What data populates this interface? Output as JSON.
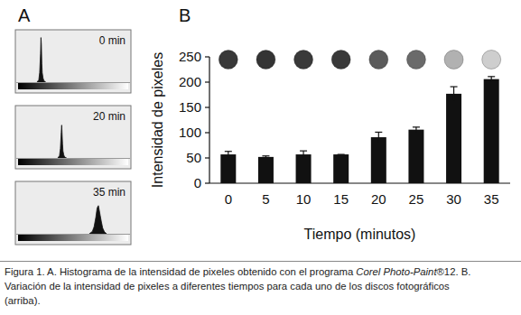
{
  "panel_labels": [
    "A",
    "B"
  ],
  "chart_data": [
    {
      "type": "histogram_area",
      "title": "0 min",
      "color": "#111111",
      "tick_labels": false,
      "grid": false,
      "xlim": [
        0,
        255
      ],
      "ylim": [
        0,
        100
      ],
      "x": [
        44,
        48,
        50,
        52,
        53,
        54,
        55,
        56,
        58,
        60,
        64
      ],
      "values": [
        0,
        5,
        20,
        60,
        95,
        80,
        40,
        20,
        8,
        3,
        0
      ]
    },
    {
      "type": "histogram_area",
      "title": "20 min",
      "color": "#111111",
      "tick_labels": false,
      "grid": false,
      "xlim": [
        0,
        255
      ],
      "ylim": [
        0,
        100
      ],
      "x": [
        92,
        96,
        98,
        100,
        101,
        102,
        103,
        104,
        106,
        108,
        112
      ],
      "values": [
        0,
        5,
        20,
        55,
        70,
        50,
        30,
        15,
        6,
        2,
        0
      ]
    },
    {
      "type": "histogram_area",
      "title": "35 min",
      "color": "#111111",
      "tick_labels": false,
      "grid": false,
      "xlim": [
        0,
        255
      ],
      "ylim": [
        0,
        100
      ],
      "x": [
        165,
        172,
        176,
        180,
        183,
        186,
        188,
        190,
        193,
        196,
        200,
        205
      ],
      "values": [
        0,
        5,
        15,
        35,
        55,
        60,
        50,
        40,
        25,
        12,
        4,
        0
      ]
    },
    {
      "type": "bar",
      "x_label": "Tiempo (minutos)",
      "y_label": "Intensidad de pixeles",
      "color": "#111111",
      "grid": false,
      "categories": [
        "0",
        "5",
        "10",
        "15",
        "20",
        "25",
        "30",
        "35"
      ],
      "values": [
        57,
        52,
        57,
        57,
        91,
        106,
        177,
        206
      ],
      "errors": [
        6,
        2,
        7,
        0,
        10,
        5,
        14,
        5
      ],
      "ylim": [
        0,
        250
      ],
      "yticks": [
        0,
        50,
        100,
        150,
        200,
        250
      ]
    }
  ],
  "caption": [
    [
      {
        "text": "Figura 1. A. Histograma de la intensidad de pixeles obtenido con el programa "
      },
      {
        "text": "Corel Photo-Paint",
        "italic": true
      },
      {
        "text": "®12. B."
      }
    ],
    [
      {
        "text": "Variación de la intensidad de pixeles a diferentes tiempos para cada uno de los discos fotográficos"
      }
    ],
    [
      {
        "text": "(arriba)."
      }
    ]
  ]
}
